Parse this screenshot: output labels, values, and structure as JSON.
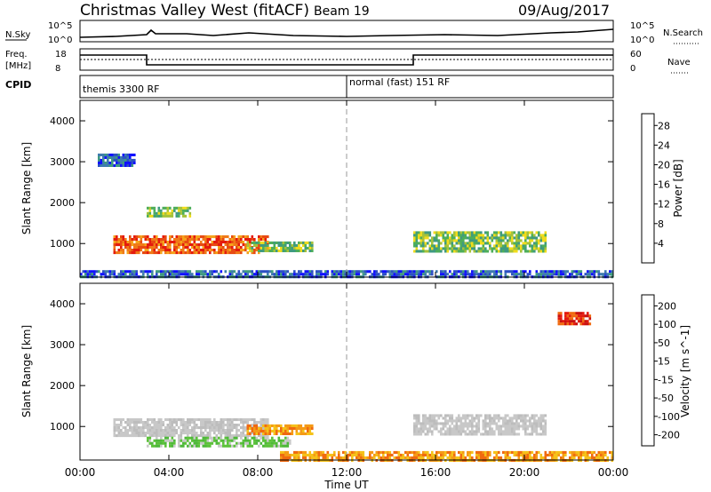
{
  "header": {
    "station": "Christmas Valley West (fitACF)",
    "beam": "Beam 19",
    "date": "09/Aug/2017"
  },
  "top_panels": {
    "nsky_label": "N.Sky",
    "nsky_ticks": [
      "10^5",
      "10^0"
    ],
    "nsearch_label": "N.Search",
    "freq_label_1": "Freq.",
    "freq_label_2": "[MHz]",
    "freq_ticks": [
      "18",
      "8"
    ],
    "nave_label": "Nave",
    "nave_ticks": [
      "60",
      "0"
    ],
    "cpid_label": "CPID",
    "cpid_mode_1": "themis 3300 RF",
    "cpid_mode_2": "normal (fast) 151 RF"
  },
  "chart_data": [
    {
      "type": "heatmap",
      "title": "Power",
      "ylabel": "Slant Range [km]",
      "xlabel": "Time UT",
      "yticks": [
        "1000",
        "2000",
        "3000",
        "4000"
      ],
      "xticks": [
        "00:00",
        "04:00",
        "08:00",
        "12:00",
        "16:00",
        "20:00",
        "00:00"
      ],
      "ylim": [
        180,
        4500
      ],
      "colorbar": {
        "label": "Power [dB]",
        "ticks": [
          "4",
          "8",
          "12",
          "16",
          "20",
          "24",
          "28"
        ],
        "colors": [
          "#1010ff",
          "#2c4fc4",
          "#3e7cae",
          "#3f9a80",
          "#4eae5a",
          "#a6c23a",
          "#f1dc1c",
          "#f5a31c",
          "#f07a18",
          "#e84a12",
          "#e41a0e"
        ]
      },
      "regions": [
        {
          "t0": 1.5,
          "t1": 8.5,
          "r0": 800,
          "r1": 1200,
          "level": "high"
        },
        {
          "t0": 7.5,
          "t1": 10.5,
          "r0": 850,
          "r1": 1050,
          "level": "mid"
        },
        {
          "t0": 3.0,
          "t1": 5.0,
          "r0": 1650,
          "r1": 1900,
          "level": "mid"
        },
        {
          "t0": 0.8,
          "t1": 2.5,
          "r0": 2900,
          "r1": 3200,
          "level": "low"
        },
        {
          "t0": 15.0,
          "t1": 21.0,
          "r0": 800,
          "r1": 1300,
          "level": "mid"
        },
        {
          "t0": 0.0,
          "t1": 24.0,
          "r0": 180,
          "r1": 350,
          "level": "low"
        }
      ]
    },
    {
      "type": "heatmap",
      "title": "Velocity",
      "ylabel": "Slant Range [km]",
      "xlabel": "Time UT",
      "yticks": [
        "1000",
        "2000",
        "3000",
        "4000"
      ],
      "xticks": [
        "00:00",
        "04:00",
        "08:00",
        "12:00",
        "16:00",
        "20:00",
        "00:00"
      ],
      "ylim": [
        180,
        4500
      ],
      "colorbar": {
        "label": "Velocity [m s^-1]",
        "ticks": [
          "200",
          "100",
          "50",
          "15",
          "-15",
          "-50",
          "-100",
          "-200"
        ],
        "colors": [
          "#1a36c8",
          "#3a6aa8",
          "#2f8a66",
          "#5cc23a",
          "#c8c8c8",
          "#f5c21a",
          "#f59a16",
          "#f06a10",
          "#e41a0e"
        ]
      },
      "regions": [
        {
          "t0": 1.5,
          "t1": 8.5,
          "r0": 800,
          "r1": 1200,
          "level": "grey"
        },
        {
          "t0": 3.0,
          "t1": 9.5,
          "r0": 500,
          "r1": 750,
          "level": "green"
        },
        {
          "t0": 7.5,
          "t1": 10.5,
          "r0": 850,
          "r1": 1050,
          "level": "orange"
        },
        {
          "t0": 15.0,
          "t1": 21.0,
          "r0": 800,
          "r1": 1300,
          "level": "grey"
        },
        {
          "t0": 21.5,
          "t1": 23.0,
          "r0": 3500,
          "r1": 3800,
          "level": "red"
        },
        {
          "t0": 9.0,
          "t1": 24.0,
          "r0": 180,
          "r1": 400,
          "level": "orange"
        }
      ]
    }
  ],
  "xaxis_title": "Time UT"
}
